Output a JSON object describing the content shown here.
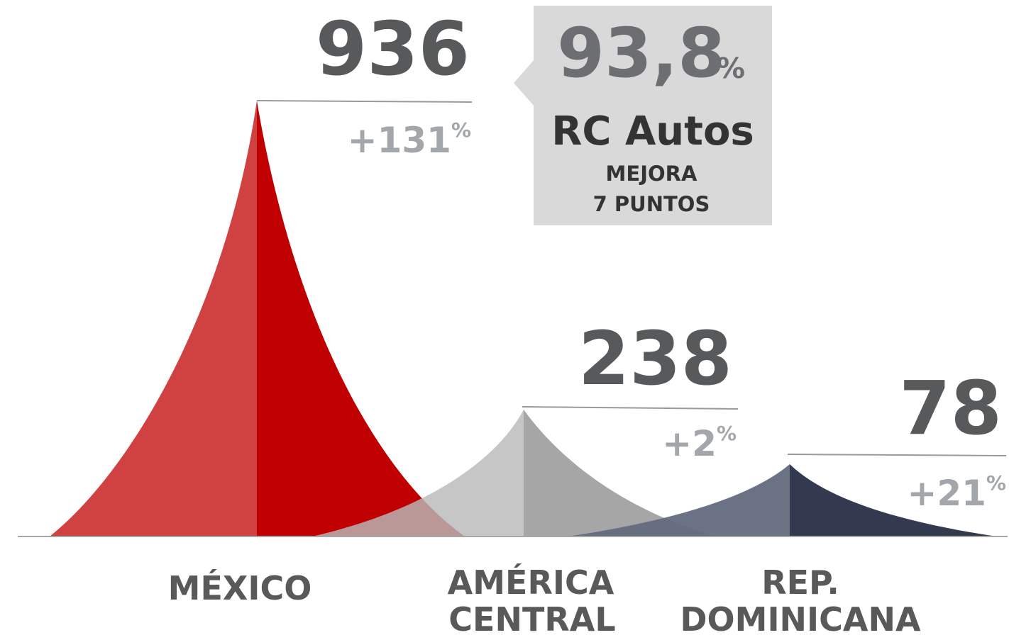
{
  "regions": [
    {
      "name": [
        "MÉXICO"
      ],
      "value": "936",
      "change": "+131",
      "unit": "%"
    },
    {
      "name": [
        "AMÉRICA",
        "CENTRAL"
      ],
      "value": "238",
      "change": "+2",
      "unit": "%"
    },
    {
      "name": [
        "REP.",
        "DOMINICANA"
      ],
      "value": "78",
      "change": "+21",
      "unit": "%"
    }
  ],
  "callout": {
    "value": "93,8",
    "unit": "%",
    "title": "RC Autos",
    "lines": [
      "MEJORA",
      "7 PUNTOS"
    ]
  }
}
